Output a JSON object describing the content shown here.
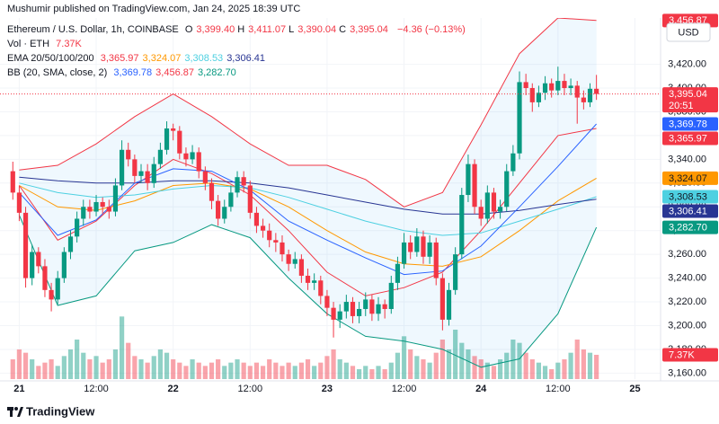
{
  "chart_data": {
    "type": "candlestick",
    "attribution": "Mushumir published on TradingView.com, Jan 24, 2025 18:39 UTC",
    "title": "Ethereum / U.S. Dollar, 1h, COINBASE",
    "ohlc_header": [
      {
        "key": "O",
        "value": 3399.4,
        "label": "3,399.40"
      },
      {
        "key": "H",
        "value": 3411.07,
        "label": "3,411.07"
      },
      {
        "key": "L",
        "value": 3390.04,
        "label": "3,390.04"
      },
      {
        "key": "C",
        "value": 3395.04,
        "label": "3,395.04"
      }
    ],
    "change": "−4.36 (−0.13%)",
    "currency": "USD",
    "countdown": "20:51",
    "brand": "TradingView",
    "up_color": "#089981",
    "down_color": "#f23645",
    "x": [
      -1,
      0,
      1,
      2,
      3,
      4,
      5,
      6,
      7,
      8,
      9,
      10,
      11,
      12,
      13,
      14,
      15,
      16,
      17,
      18,
      19,
      20,
      21,
      22,
      23,
      24,
      25,
      26,
      27,
      28,
      29,
      30,
      31,
      32,
      33,
      34,
      35,
      36,
      37,
      38,
      39,
      40,
      41,
      42,
      43,
      44,
      45,
      46,
      47,
      48,
      49,
      50,
      51,
      52,
      53,
      54,
      55,
      56,
      57,
      58,
      59,
      60,
      61,
      62,
      63,
      64,
      65,
      66,
      67,
      68,
      69,
      70,
      71,
      72,
      73,
      74,
      75,
      76,
      77,
      78,
      79,
      80,
      81,
      82,
      83,
      84,
      85,
      86,
      87,
      88,
      89,
      90
    ],
    "open": [
      3330,
      3312,
      3295,
      3240,
      3262,
      3250,
      3230,
      3222,
      3240,
      3262,
      3275,
      3290,
      3300,
      3296,
      3304,
      3300,
      3296,
      3318,
      3348,
      3340,
      3326,
      3330,
      3320,
      3336,
      3348,
      3366,
      3364,
      3345,
      3340,
      3346,
      3330,
      3320,
      3305,
      3290,
      3300,
      3312,
      3325,
      3318,
      3295,
      3284,
      3280,
      3272,
      3270,
      3260,
      3252,
      3256,
      3242,
      3236,
      3238,
      3225,
      3215,
      3205,
      3212,
      3220,
      3208,
      3214,
      3222,
      3210,
      3218,
      3214,
      3236,
      3252,
      3270,
      3262,
      3275,
      3258,
      3270,
      3240,
      3205,
      3230,
      3260,
      3310,
      3336,
      3300,
      3290,
      3312,
      3296,
      3300,
      3330,
      3345,
      3405,
      3400,
      3388,
      3396,
      3404,
      3398,
      3406,
      3400,
      3402,
      3392,
      3388,
      3399.4
    ],
    "high": [
      3338,
      3318,
      3300,
      3268,
      3266,
      3256,
      3236,
      3246,
      3266,
      3280,
      3296,
      3306,
      3306,
      3310,
      3308,
      3306,
      3324,
      3356,
      3354,
      3344,
      3336,
      3336,
      3342,
      3354,
      3372,
      3370,
      3368,
      3350,
      3352,
      3350,
      3334,
      3324,
      3310,
      3306,
      3318,
      3330,
      3330,
      3322,
      3300,
      3290,
      3286,
      3278,
      3276,
      3264,
      3262,
      3260,
      3248,
      3244,
      3242,
      3230,
      3220,
      3218,
      3226,
      3224,
      3220,
      3228,
      3226,
      3224,
      3222,
      3242,
      3258,
      3278,
      3276,
      3282,
      3280,
      3276,
      3274,
      3244,
      3236,
      3266,
      3316,
      3344,
      3340,
      3306,
      3318,
      3316,
      3306,
      3336,
      3352,
      3414,
      3412,
      3404,
      3402,
      3410,
      3408,
      3418,
      3412,
      3408,
      3406,
      3398,
      3404,
      3411.07
    ],
    "low": [
      3306,
      3288,
      3232,
      3234,
      3244,
      3224,
      3212,
      3218,
      3236,
      3256,
      3270,
      3284,
      3290,
      3292,
      3294,
      3290,
      3292,
      3314,
      3334,
      3320,
      3320,
      3314,
      3316,
      3332,
      3344,
      3356,
      3340,
      3334,
      3336,
      3324,
      3314,
      3298,
      3284,
      3286,
      3296,
      3308,
      3312,
      3290,
      3278,
      3274,
      3266,
      3262,
      3254,
      3246,
      3248,
      3236,
      3230,
      3230,
      3218,
      3208,
      3190,
      3198,
      3206,
      3202,
      3202,
      3208,
      3204,
      3204,
      3206,
      3210,
      3230,
      3248,
      3256,
      3258,
      3252,
      3252,
      3234,
      3196,
      3200,
      3226,
      3256,
      3304,
      3294,
      3284,
      3286,
      3290,
      3290,
      3296,
      3326,
      3340,
      3394,
      3380,
      3384,
      3390,
      3392,
      3394,
      3394,
      3394,
      3370,
      3382,
      3384,
      3390.04
    ],
    "close": [
      3312,
      3295,
      3240,
      3262,
      3250,
      3230,
      3222,
      3240,
      3262,
      3275,
      3290,
      3300,
      3296,
      3304,
      3300,
      3296,
      3318,
      3348,
      3340,
      3326,
      3330,
      3320,
      3336,
      3348,
      3366,
      3364,
      3345,
      3340,
      3346,
      3330,
      3320,
      3305,
      3290,
      3300,
      3312,
      3325,
      3318,
      3295,
      3284,
      3280,
      3272,
      3270,
      3260,
      3252,
      3256,
      3242,
      3236,
      3238,
      3225,
      3215,
      3205,
      3212,
      3220,
      3208,
      3214,
      3222,
      3210,
      3218,
      3214,
      3236,
      3252,
      3270,
      3262,
      3275,
      3258,
      3270,
      3240,
      3205,
      3230,
      3260,
      3310,
      3336,
      3300,
      3290,
      3312,
      3296,
      3300,
      3330,
      3345,
      3405,
      3400,
      3388,
      3396,
      3404,
      3398,
      3406,
      3400,
      3402,
      3392,
      3388,
      3399.4,
      3395.04
    ],
    "volume": [
      6000,
      9000,
      8000,
      6000,
      4000,
      5000,
      6000,
      4000,
      7000,
      9000,
      12000,
      8000,
      6000,
      7000,
      5000,
      6000,
      9000,
      19000,
      11000,
      7000,
      6000,
      5000,
      7000,
      9000,
      8000,
      6000,
      5000,
      4000,
      6000,
      5000,
      4000,
      5000,
      6000,
      4000,
      5000,
      6000,
      5000,
      4000,
      5000,
      4000,
      6000,
      5000,
      4000,
      5000,
      4000,
      5000,
      6000,
      4000,
      5000,
      7000,
      9000,
      6000,
      5000,
      4000,
      3000,
      4000,
      3000,
      4000,
      3000,
      5000,
      8000,
      13000,
      9000,
      7000,
      6000,
      5000,
      8000,
      12000,
      9000,
      15000,
      11000,
      9000,
      7000,
      6000,
      5000,
      4000,
      6000,
      8000,
      12000,
      11000,
      8000,
      6000,
      5000,
      4000,
      3000,
      5000,
      6000,
      8000,
      12000,
      9000,
      8000,
      7370
    ],
    "volume_legend": {
      "name": "Vol · ETH",
      "value": 7370,
      "label": "7.37K"
    },
    "vlim": [
      0,
      30000
    ],
    "last_price": {
      "value": 3395.04,
      "label": "3,395.04"
    },
    "xlim": [
      -3,
      100
    ],
    "xticks": [
      {
        "value": 0,
        "label": "21"
      },
      {
        "value": 12,
        "label": "12:00"
      },
      {
        "value": 24,
        "label": "22"
      },
      {
        "value": 36,
        "label": "12:00"
      },
      {
        "value": 48,
        "label": "23"
      },
      {
        "value": 60,
        "label": "12:00"
      },
      {
        "value": 72,
        "label": "24"
      },
      {
        "value": 84,
        "label": "12:00"
      },
      {
        "value": 96,
        "label": "25"
      }
    ],
    "ylim": [
      3155,
      3459
    ],
    "yticks": [
      {
        "value": 3160,
        "label": "3,160.00"
      },
      {
        "value": 3180,
        "label": "3,180.00"
      },
      {
        "value": 3200,
        "label": "3,200.00"
      },
      {
        "value": 3220,
        "label": "3,220.00"
      },
      {
        "value": 3240,
        "label": "3,240.00"
      },
      {
        "value": 3260,
        "label": "3,260.00"
      },
      {
        "value": 3280,
        "label": "3,280.00"
      },
      {
        "value": 3300,
        "label": "3,300.00"
      },
      {
        "value": 3320,
        "label": "3,320.00"
      },
      {
        "value": 3340,
        "label": "3,340.00"
      },
      {
        "value": 3360,
        "label": "3,360.00"
      },
      {
        "value": 3380,
        "label": "3,380.00"
      },
      {
        "value": 3400,
        "label": "3,400.00"
      },
      {
        "value": 3420,
        "label": "3,420.00"
      }
    ],
    "grid": true,
    "overlay_x": [
      0,
      6,
      12,
      18,
      24,
      30,
      36,
      42,
      48,
      54,
      60,
      66,
      72,
      78,
      84,
      90
    ],
    "ema": {
      "label": "EMA 20/50/100/200",
      "series": [
        {
          "color": "#f23645",
          "values": [
            3318,
            3272,
            3288,
            3318,
            3340,
            3328,
            3310,
            3280,
            3245,
            3225,
            3232,
            3245,
            3280,
            3320,
            3360,
            3365.97
          ],
          "last": {
            "value": 3365.97,
            "label": "3,365.97"
          }
        },
        {
          "color": "#ff9800",
          "values": [
            3318,
            3300,
            3297,
            3305,
            3318,
            3320,
            3315,
            3300,
            3280,
            3262,
            3252,
            3250,
            3258,
            3280,
            3305,
            3324.07
          ],
          "last": {
            "value": 3324.07,
            "label": "3,324.07"
          }
        },
        {
          "color": "#4dd0e1",
          "values": [
            3320,
            3312,
            3308,
            3310,
            3315,
            3318,
            3316,
            3308,
            3298,
            3288,
            3280,
            3276,
            3278,
            3288,
            3298,
            3308.53
          ],
          "last": {
            "value": 3308.53,
            "label": "3,308.53"
          }
        },
        {
          "color": "#283593",
          "values": [
            3325,
            3322,
            3320,
            3320,
            3322,
            3322,
            3320,
            3316,
            3310,
            3304,
            3298,
            3294,
            3294,
            3297,
            3302,
            3306.41
          ],
          "last": {
            "value": 3306.41,
            "label": "3,306.41"
          }
        }
      ]
    },
    "bb": {
      "label": "BB (20, SMA, close, 2)",
      "fill": "#2196f3",
      "series": [
        {
          "color": "#2962ff",
          "values": [
            3312,
            3276,
            3289,
            3320,
            3332,
            3330,
            3314,
            3288,
            3272,
            3257,
            3243,
            3246,
            3267,
            3300,
            3334,
            3369.78
          ],
          "last": {
            "value": 3369.78,
            "label": "3,369.78"
          }
        },
        {
          "color": "#f23645",
          "values": [
            3331,
            3335,
            3353,
            3376,
            3395,
            3376,
            3353,
            3335,
            3335,
            3323,
            3300,
            3312,
            3369,
            3429,
            3459,
            3456.87
          ],
          "last": {
            "value": 3456.87,
            "label": "3,456.87"
          }
        },
        {
          "color": "#089981",
          "values": [
            3293,
            3217,
            3225,
            3263,
            3270,
            3285,
            3274,
            3240,
            3210,
            3191,
            3187,
            3180,
            3165,
            3172,
            3210,
            3282.7
          ],
          "last": {
            "value": 3282.7,
            "label": "3,282.70"
          }
        }
      ]
    }
  }
}
